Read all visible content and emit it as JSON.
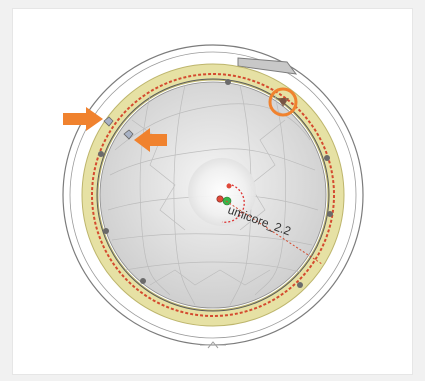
{
  "viewport": {
    "label": "umicore_2.2",
    "colors": {
      "page_bg": "#f1f1f1",
      "canvas_bg": "#ffffff",
      "outer_line": "#8f8f8f",
      "yellow_ring": "#e6e1a4",
      "yellow_ring_edge": "#bdb56c",
      "red_trace": "#d44a2f",
      "mesh_fill": "#d9d9d9",
      "mesh_line": "#b3b3b3",
      "annotation_orange": "#f0822e",
      "handle_dark": "#6b6b6b",
      "pivot_green": "#38b54a",
      "pivot_red": "#e04a3a"
    },
    "icons": {
      "annotation_arrow_left": "arrow-right-icon",
      "annotation_arrow_right": "arrow-left-icon",
      "annotation_circle": "highlight-circle-icon"
    }
  }
}
